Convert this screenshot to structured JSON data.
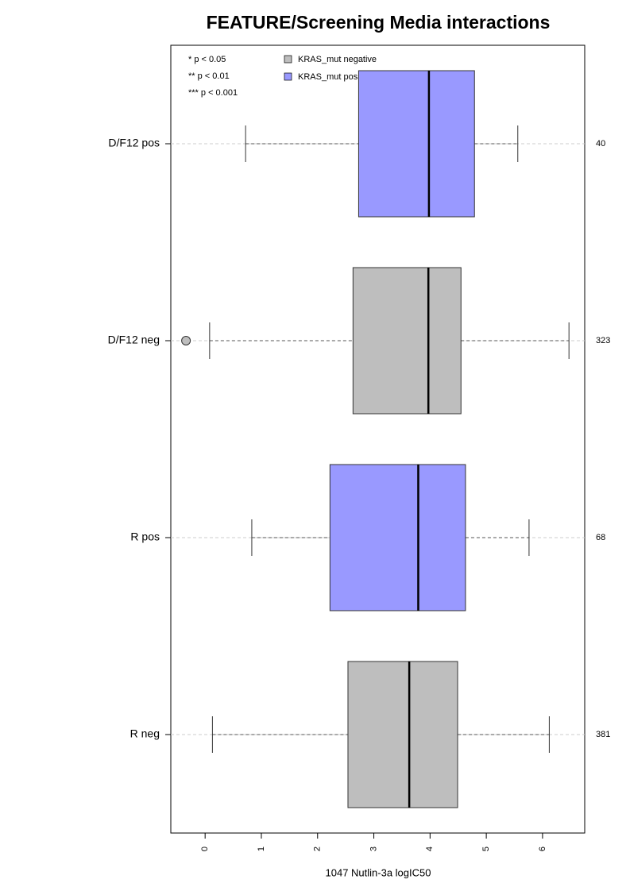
{
  "chart_data": {
    "type": "boxplot",
    "title": "FEATURE/Screening Media interactions",
    "x_label": "1047 Nutlin-3a logIC50",
    "xlim": [
      -0.61,
      6.75
    ],
    "xticks": [
      0,
      1,
      2,
      3,
      4,
      5,
      6
    ],
    "significance_notes": [
      "* p < 0.05",
      "** p < 0.01",
      "*** p < 0.001"
    ],
    "legend": [
      {
        "name": "KRAS_mut negative",
        "color": "#bebebe"
      },
      {
        "name": "KRAS_mut positive",
        "color": "#9999ff"
      }
    ],
    "boxes": [
      {
        "label": "D/F12 pos",
        "n": 40,
        "color": "#9999ff",
        "whisker_low": 0.72,
        "q1": 2.73,
        "median": 3.98,
        "q3": 4.79,
        "whisker_high": 5.56,
        "outliers": []
      },
      {
        "label": "D/F12 neg",
        "n": 323,
        "color": "#bebebe",
        "whisker_low": 0.08,
        "q1": 2.63,
        "median": 3.97,
        "q3": 4.55,
        "whisker_high": 6.47,
        "outliers": [
          -0.34
        ]
      },
      {
        "label": "R pos",
        "n": 68,
        "color": "#9999ff",
        "whisker_low": 0.83,
        "q1": 2.22,
        "median": 3.79,
        "q3": 4.63,
        "whisker_high": 5.76,
        "outliers": []
      },
      {
        "label": "R neg",
        "n": 381,
        "color": "#bebebe",
        "whisker_low": 0.13,
        "q1": 2.54,
        "median": 3.63,
        "q3": 4.49,
        "whisker_high": 6.12,
        "outliers": []
      }
    ]
  }
}
